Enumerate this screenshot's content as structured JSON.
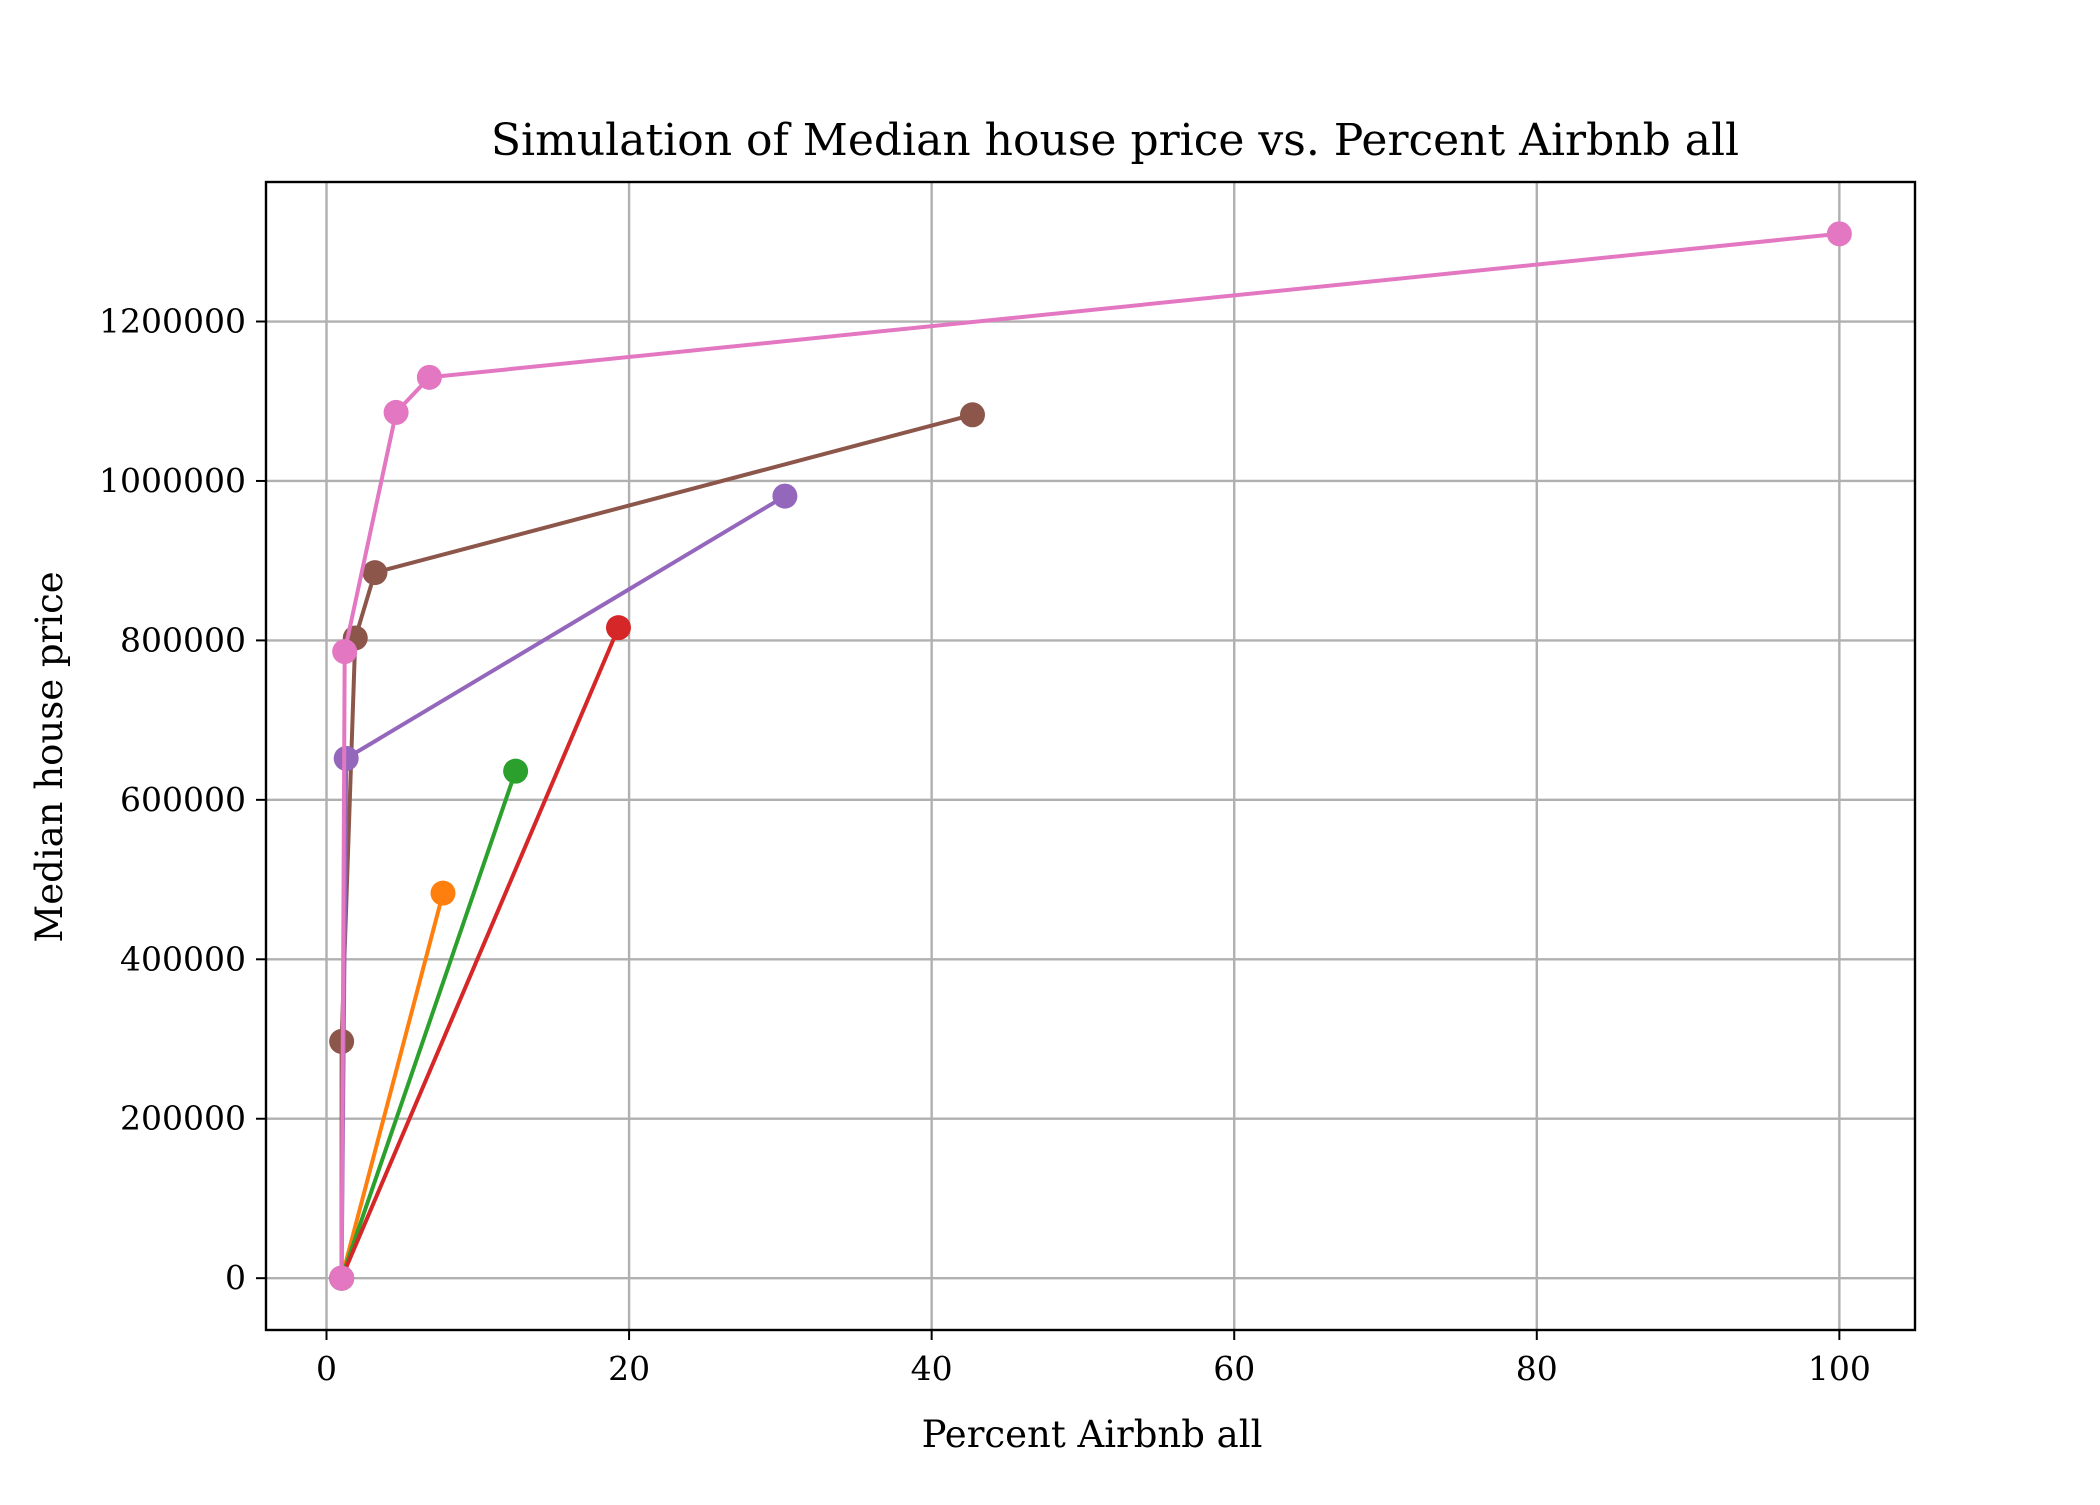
{
  "chart_data": {
    "type": "line",
    "title": "Simulation of Median house price vs. Percent Airbnb all",
    "xlabel": "Percent Airbnb all",
    "ylabel": "Median house price",
    "xlim": [
      -4,
      105
    ],
    "ylim": [
      -65000,
      1375000
    ],
    "xticks": [
      0,
      20,
      40,
      60,
      80,
      100
    ],
    "xtick_labels": [
      "0",
      "20",
      "40",
      "60",
      "80",
      "100"
    ],
    "yticks": [
      0,
      200000,
      400000,
      600000,
      800000,
      1000000,
      1200000
    ],
    "ytick_labels": [
      "0",
      "200000",
      "400000",
      "600000",
      "800000",
      "1000000",
      "1200000"
    ],
    "grid": true,
    "legend": "none",
    "series": [
      {
        "color": "#ff7f0e",
        "x": [
          1.0,
          7.7
        ],
        "y": [
          0,
          483000
        ]
      },
      {
        "color": "#2ca02c",
        "x": [
          1.0,
          12.5
        ],
        "y": [
          0,
          636000
        ]
      },
      {
        "color": "#d62728",
        "x": [
          1.0,
          19.3
        ],
        "y": [
          0,
          816000
        ]
      },
      {
        "color": "#8c564b",
        "x": [
          1.0,
          1.0,
          1.9,
          3.2,
          42.7
        ],
        "y": [
          0,
          297000,
          803000,
          885000,
          1083000
        ]
      },
      {
        "color": "#9467bd",
        "x": [
          1.0,
          1.3,
          30.3
        ],
        "y": [
          0,
          652000,
          981000
        ]
      },
      {
        "color": "#e377c2",
        "x": [
          1.0,
          1.2,
          4.6,
          6.8,
          100.0
        ],
        "y": [
          0,
          786000,
          1086000,
          1130000,
          1310000
        ]
      }
    ]
  }
}
